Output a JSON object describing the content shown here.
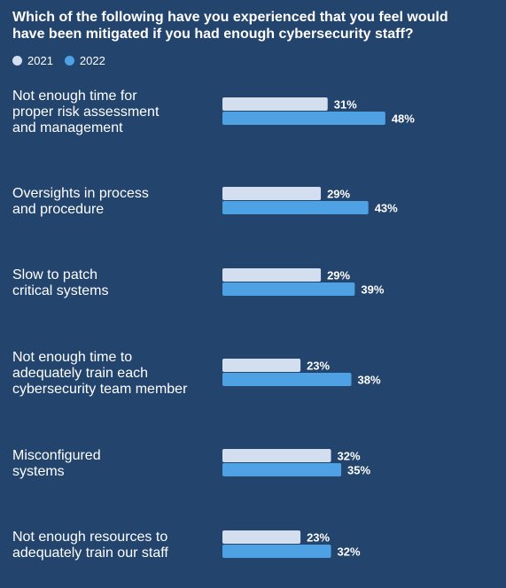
{
  "chart_data": {
    "type": "bar",
    "orientation": "horizontal",
    "title": "Which of the following have you experienced that you feel would\nhave been mitigated if you had enough cybersecurity staff?",
    "categories": [
      [
        "Not enough time for",
        "proper risk assessment",
        "and management"
      ],
      [
        "Oversights in process",
        "and procedure"
      ],
      [
        "Slow to patch",
        "critical systems"
      ],
      [
        "Not enough time to",
        "adequately train each",
        "cybersecurity team member"
      ],
      [
        "Misconfigured",
        "systems"
      ],
      [
        "Not enough resources to",
        "adequately train our staff"
      ]
    ],
    "series": [
      {
        "name": "2021",
        "color": "#d3deee",
        "values": [
          31,
          29,
          29,
          23,
          32,
          23
        ],
        "labels": [
          "31%",
          "29%",
          "29%",
          "23%",
          "32%",
          "23%"
        ]
      },
      {
        "name": "2022",
        "color": "#4ea1e3",
        "values": [
          48,
          43,
          39,
          38,
          35,
          32
        ],
        "labels": [
          "48%",
          "43%",
          "39%",
          "38%",
          "35%",
          "32%"
        ]
      }
    ],
    "value_unit": "%",
    "legend_position": "top-left",
    "grid": false
  }
}
